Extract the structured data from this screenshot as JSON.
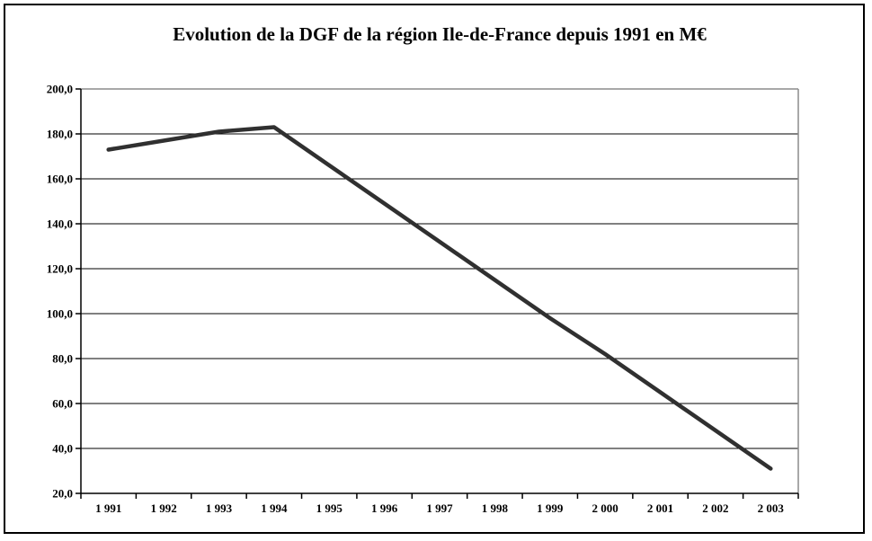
{
  "chart_data": {
    "type": "line",
    "title": "Evolution de la DGF de la région Ile-de-France depuis 1991 en M€",
    "categories": [
      "1 991",
      "1 992",
      "1 993",
      "1 994",
      "1 995",
      "1 996",
      "1 997",
      "1 998",
      "1 999",
      "2 000",
      "2 001",
      "2 002",
      "2 003"
    ],
    "values": [
      173,
      177,
      181,
      183,
      166,
      149,
      132,
      115,
      98,
      82,
      65,
      48,
      31
    ],
    "xlabel": "",
    "ylabel": "",
    "ylim": [
      20,
      200
    ],
    "y_tick_values": [
      200,
      180,
      160,
      140,
      120,
      100,
      80,
      60,
      40,
      20
    ],
    "y_tick_labels": [
      "200,0",
      "180,0",
      "160,0",
      "140,0",
      "120,0",
      "100,0",
      "80,0",
      "60,0",
      "40,0",
      "20,0"
    ],
    "grid": true,
    "legend": false,
    "layout": {
      "gridline_orientation": "horizontal",
      "x_ticks_between_categories": true
    },
    "colors": {
      "series_line": "#303030",
      "gridline": "#000000",
      "plot_frame_top_right": "#8c8c8c",
      "axis": "#000000",
      "outer_border": "#000000",
      "background": "#ffffff",
      "text": "#000000"
    }
  }
}
